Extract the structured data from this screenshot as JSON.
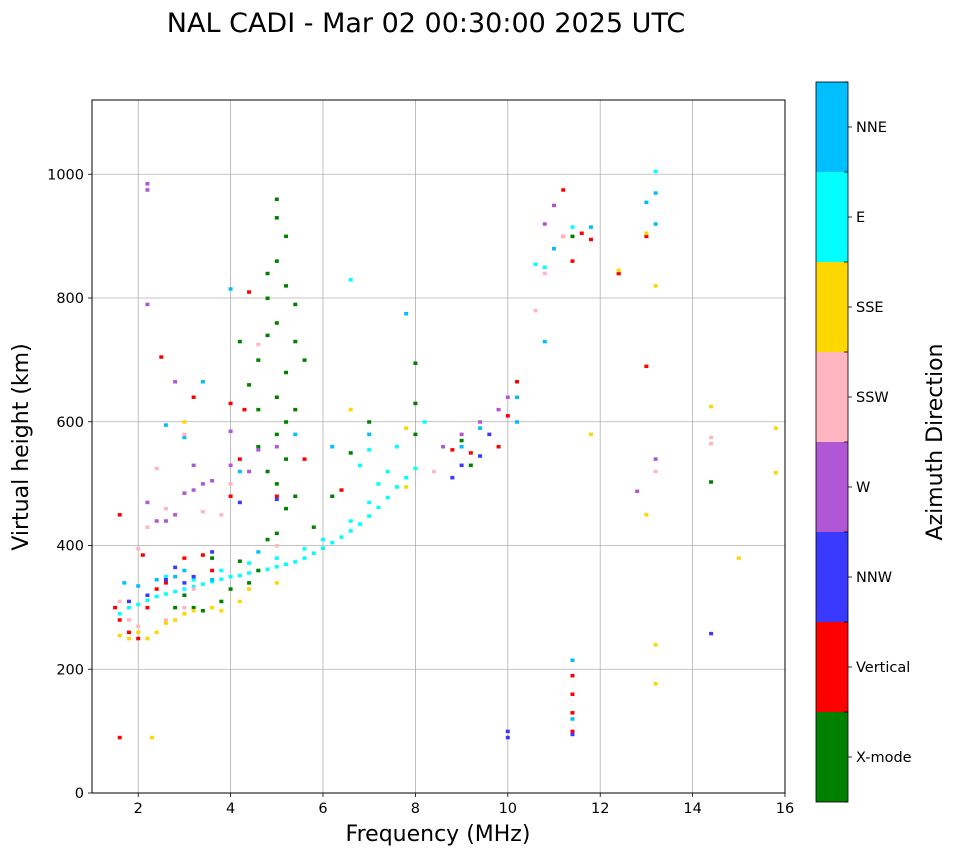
{
  "chart_data": {
    "type": "scatter",
    "title": "NAL CADI - Mar 02 00:30:00 2025 UTC",
    "xlabel": "Frequency (MHz)",
    "ylabel": "Virtual height (km)",
    "xlim": [
      1,
      16
    ],
    "ylim": [
      0,
      1120
    ],
    "xticks": [
      2,
      4,
      6,
      8,
      10,
      12,
      14,
      16
    ],
    "yticks": [
      0,
      200,
      400,
      600,
      800,
      1000
    ],
    "grid": true,
    "colorbar": {
      "label": "Azimuth Direction",
      "categories": [
        {
          "name": "X-mode",
          "color": "#008000"
        },
        {
          "name": "Vertical",
          "color": "#ff0000"
        },
        {
          "name": "NNW",
          "color": "#3a3aff"
        },
        {
          "name": "W",
          "color": "#b057d6"
        },
        {
          "name": "SSW",
          "color": "#ffb6c1"
        },
        {
          "name": "SSE",
          "color": "#ffd700"
        },
        {
          "name": "E",
          "color": "#00ffff"
        },
        {
          "name": "NNE",
          "color": "#00bfff"
        }
      ]
    },
    "series": [
      {
        "name": "E",
        "color": "#00ffff",
        "points": [
          [
            1.6,
            290
          ],
          [
            1.8,
            300
          ],
          [
            2.0,
            305
          ],
          [
            2.2,
            312
          ],
          [
            2.4,
            318
          ],
          [
            2.6,
            322
          ],
          [
            2.8,
            326
          ],
          [
            3.0,
            330
          ],
          [
            3.2,
            334
          ],
          [
            3.4,
            338
          ],
          [
            3.6,
            342
          ],
          [
            3.8,
            346
          ],
          [
            4.0,
            350
          ],
          [
            4.2,
            352
          ],
          [
            4.4,
            356
          ],
          [
            4.6,
            360
          ],
          [
            4.8,
            362
          ],
          [
            5.0,
            366
          ],
          [
            5.2,
            370
          ],
          [
            5.4,
            374
          ],
          [
            5.6,
            380
          ],
          [
            5.8,
            388
          ],
          [
            6.0,
            396
          ],
          [
            6.2,
            405
          ],
          [
            6.4,
            414
          ],
          [
            6.6,
            424
          ],
          [
            6.8,
            435
          ],
          [
            7.0,
            448
          ],
          [
            7.2,
            462
          ],
          [
            7.4,
            478
          ],
          [
            7.6,
            495
          ],
          [
            7.8,
            510
          ],
          [
            8.0,
            525
          ],
          [
            2.6,
            350
          ],
          [
            3.2,
            345
          ],
          [
            3.8,
            360
          ],
          [
            4.4,
            372
          ],
          [
            5.0,
            380
          ],
          [
            5.6,
            395
          ],
          [
            6.0,
            410
          ],
          [
            6.6,
            440
          ],
          [
            7.0,
            470
          ],
          [
            7.2,
            500
          ],
          [
            7.4,
            520
          ],
          [
            6.8,
            530
          ],
          [
            7.0,
            555
          ],
          [
            7.6,
            560
          ],
          [
            8.2,
            600
          ],
          [
            10.8,
            850
          ],
          [
            10.6,
            855
          ],
          [
            13.2,
            1005
          ],
          [
            6.6,
            830
          ],
          [
            11.4,
            915
          ]
        ]
      },
      {
        "name": "NNE",
        "color": "#00bfff",
        "points": [
          [
            1.7,
            340
          ],
          [
            2.0,
            335
          ],
          [
            2.4,
            345
          ],
          [
            2.8,
            350
          ],
          [
            3.0,
            360
          ],
          [
            3.4,
            665
          ],
          [
            3.6,
            345
          ],
          [
            4.0,
            815
          ],
          [
            4.2,
            520
          ],
          [
            4.6,
            390
          ],
          [
            5.4,
            580
          ],
          [
            6.2,
            560
          ],
          [
            7.0,
            580
          ],
          [
            7.8,
            775
          ],
          [
            9.0,
            560
          ],
          [
            9.4,
            590
          ],
          [
            10.2,
            600
          ],
          [
            10.2,
            640
          ],
          [
            10.8,
            730
          ],
          [
            11.0,
            880
          ],
          [
            11.4,
            215
          ],
          [
            11.4,
            120
          ],
          [
            11.8,
            915
          ],
          [
            13.2,
            920
          ],
          [
            13.2,
            970
          ],
          [
            13.0,
            955
          ],
          [
            2.6,
            595
          ],
          [
            3.0,
            575
          ]
        ]
      },
      {
        "name": "X-mode",
        "color": "#008000",
        "points": [
          [
            3.2,
            300
          ],
          [
            3.4,
            295
          ],
          [
            3.8,
            310
          ],
          [
            4.0,
            330
          ],
          [
            4.2,
            375
          ],
          [
            4.4,
            340
          ],
          [
            4.6,
            360
          ],
          [
            4.8,
            410
          ],
          [
            5.0,
            420
          ],
          [
            5.2,
            460
          ],
          [
            5.4,
            480
          ],
          [
            5.0,
            500
          ],
          [
            4.8,
            520
          ],
          [
            5.2,
            540
          ],
          [
            4.6,
            560
          ],
          [
            5.0,
            580
          ],
          [
            5.2,
            600
          ],
          [
            5.4,
            620
          ],
          [
            5.0,
            640
          ],
          [
            5.2,
            680
          ],
          [
            4.6,
            700
          ],
          [
            5.6,
            700
          ],
          [
            5.4,
            730
          ],
          [
            4.8,
            740
          ],
          [
            5.0,
            760
          ],
          [
            5.4,
            790
          ],
          [
            4.8,
            800
          ],
          [
            5.2,
            820
          ],
          [
            4.8,
            840
          ],
          [
            5.0,
            860
          ],
          [
            5.2,
            900
          ],
          [
            5.0,
            930
          ],
          [
            5.0,
            960
          ],
          [
            4.4,
            660
          ],
          [
            4.2,
            730
          ],
          [
            4.6,
            620
          ],
          [
            5.8,
            430
          ],
          [
            6.2,
            480
          ],
          [
            6.6,
            550
          ],
          [
            7.0,
            600
          ],
          [
            8.0,
            580
          ],
          [
            8.0,
            630
          ],
          [
            8.0,
            695
          ],
          [
            9.0,
            570
          ],
          [
            9.2,
            530
          ],
          [
            14.4,
            503
          ],
          [
            11.4,
            900
          ],
          [
            12.4,
            840
          ],
          [
            3.6,
            380
          ],
          [
            3.0,
            320
          ],
          [
            2.8,
            300
          ]
        ]
      },
      {
        "name": "Vertical",
        "color": "#ff0000",
        "points": [
          [
            1.5,
            300
          ],
          [
            1.6,
            280
          ],
          [
            1.8,
            260
          ],
          [
            2.0,
            250
          ],
          [
            2.1,
            385
          ],
          [
            2.2,
            300
          ],
          [
            2.4,
            330
          ],
          [
            2.6,
            340
          ],
          [
            3.0,
            380
          ],
          [
            3.4,
            385
          ],
          [
            3.6,
            360
          ],
          [
            4.0,
            480
          ],
          [
            4.2,
            540
          ],
          [
            4.3,
            620
          ],
          [
            4.0,
            630
          ],
          [
            4.4,
            810
          ],
          [
            3.2,
            640
          ],
          [
            1.6,
            450
          ],
          [
            1.6,
            90
          ],
          [
            2.5,
            705
          ],
          [
            5.0,
            480
          ],
          [
            5.6,
            540
          ],
          [
            6.4,
            490
          ],
          [
            8.8,
            555
          ],
          [
            9.2,
            550
          ],
          [
            9.8,
            560
          ],
          [
            10.0,
            610
          ],
          [
            10.2,
            665
          ],
          [
            11.4,
            190
          ],
          [
            11.4,
            160
          ],
          [
            11.4,
            130
          ],
          [
            11.4,
            100
          ],
          [
            11.2,
            900
          ],
          [
            11.6,
            905
          ],
          [
            11.8,
            895
          ],
          [
            11.4,
            860
          ],
          [
            11.2,
            975
          ],
          [
            12.4,
            840
          ],
          [
            13.0,
            690
          ],
          [
            13.0,
            900
          ]
        ]
      },
      {
        "name": "NNW",
        "color": "#3a3aff",
        "points": [
          [
            1.8,
            310
          ],
          [
            2.2,
            320
          ],
          [
            2.6,
            345
          ],
          [
            3.2,
            350
          ],
          [
            3.6,
            390
          ],
          [
            4.2,
            470
          ],
          [
            5.0,
            475
          ],
          [
            8.8,
            510
          ],
          [
            9.0,
            530
          ],
          [
            9.4,
            545
          ],
          [
            9.6,
            580
          ],
          [
            10.0,
            100
          ],
          [
            10.0,
            90
          ],
          [
            14.4,
            258
          ],
          [
            11.4,
            95
          ],
          [
            2.8,
            365
          ],
          [
            3.0,
            340
          ]
        ]
      },
      {
        "name": "W",
        "color": "#b057d6",
        "points": [
          [
            2.2,
            470
          ],
          [
            2.4,
            440
          ],
          [
            2.6,
            440
          ],
          [
            2.8,
            450
          ],
          [
            3.0,
            485
          ],
          [
            3.2,
            490
          ],
          [
            3.4,
            500
          ],
          [
            3.6,
            505
          ],
          [
            3.2,
            530
          ],
          [
            2.8,
            665
          ],
          [
            4.0,
            585
          ],
          [
            4.0,
            530
          ],
          [
            4.4,
            520
          ],
          [
            5.0,
            560
          ],
          [
            8.6,
            560
          ],
          [
            9.0,
            580
          ],
          [
            9.4,
            600
          ],
          [
            9.8,
            620
          ],
          [
            10.0,
            640
          ],
          [
            10.8,
            920
          ],
          [
            11.0,
            950
          ],
          [
            13.2,
            540
          ],
          [
            12.8,
            488
          ],
          [
            2.2,
            985
          ],
          [
            2.2,
            975
          ],
          [
            2.2,
            790
          ],
          [
            4.6,
            555
          ]
        ]
      },
      {
        "name": "SSW",
        "color": "#ffb6c1",
        "points": [
          [
            1.6,
            310
          ],
          [
            1.8,
            280
          ],
          [
            2.0,
            395
          ],
          [
            2.2,
            430
          ],
          [
            2.4,
            525
          ],
          [
            2.6,
            460
          ],
          [
            3.0,
            580
          ],
          [
            3.0,
            300
          ],
          [
            2.6,
            280
          ],
          [
            3.4,
            455
          ],
          [
            3.8,
            450
          ],
          [
            4.0,
            500
          ],
          [
            4.6,
            725
          ],
          [
            5.0,
            400
          ],
          [
            8.4,
            520
          ],
          [
            10.6,
            780
          ],
          [
            10.8,
            840
          ],
          [
            11.2,
            900
          ],
          [
            14.4,
            575
          ],
          [
            14.4,
            565
          ],
          [
            13.2,
            520
          ],
          [
            3.2,
            330
          ],
          [
            2.0,
            270
          ]
        ]
      },
      {
        "name": "SSE",
        "color": "#ffd700",
        "points": [
          [
            1.6,
            255
          ],
          [
            1.8,
            250
          ],
          [
            2.0,
            260
          ],
          [
            2.2,
            250
          ],
          [
            2.4,
            260
          ],
          [
            2.6,
            275
          ],
          [
            2.8,
            280
          ],
          [
            3.0,
            290
          ],
          [
            3.2,
            295
          ],
          [
            3.6,
            300
          ],
          [
            3.8,
            295
          ],
          [
            4.2,
            310
          ],
          [
            4.4,
            330
          ],
          [
            5.0,
            340
          ],
          [
            6.6,
            620
          ],
          [
            7.8,
            495
          ],
          [
            7.8,
            590
          ],
          [
            2.3,
            90
          ],
          [
            11.8,
            580
          ],
          [
            12.4,
            845
          ],
          [
            13.0,
            905
          ],
          [
            13.2,
            820
          ],
          [
            13.0,
            450
          ],
          [
            13.2,
            240
          ],
          [
            13.2,
            177
          ],
          [
            14.4,
            625
          ],
          [
            15.0,
            380
          ],
          [
            15.8,
            590
          ],
          [
            15.8,
            518
          ],
          [
            3.0,
            600
          ]
        ]
      }
    ]
  }
}
